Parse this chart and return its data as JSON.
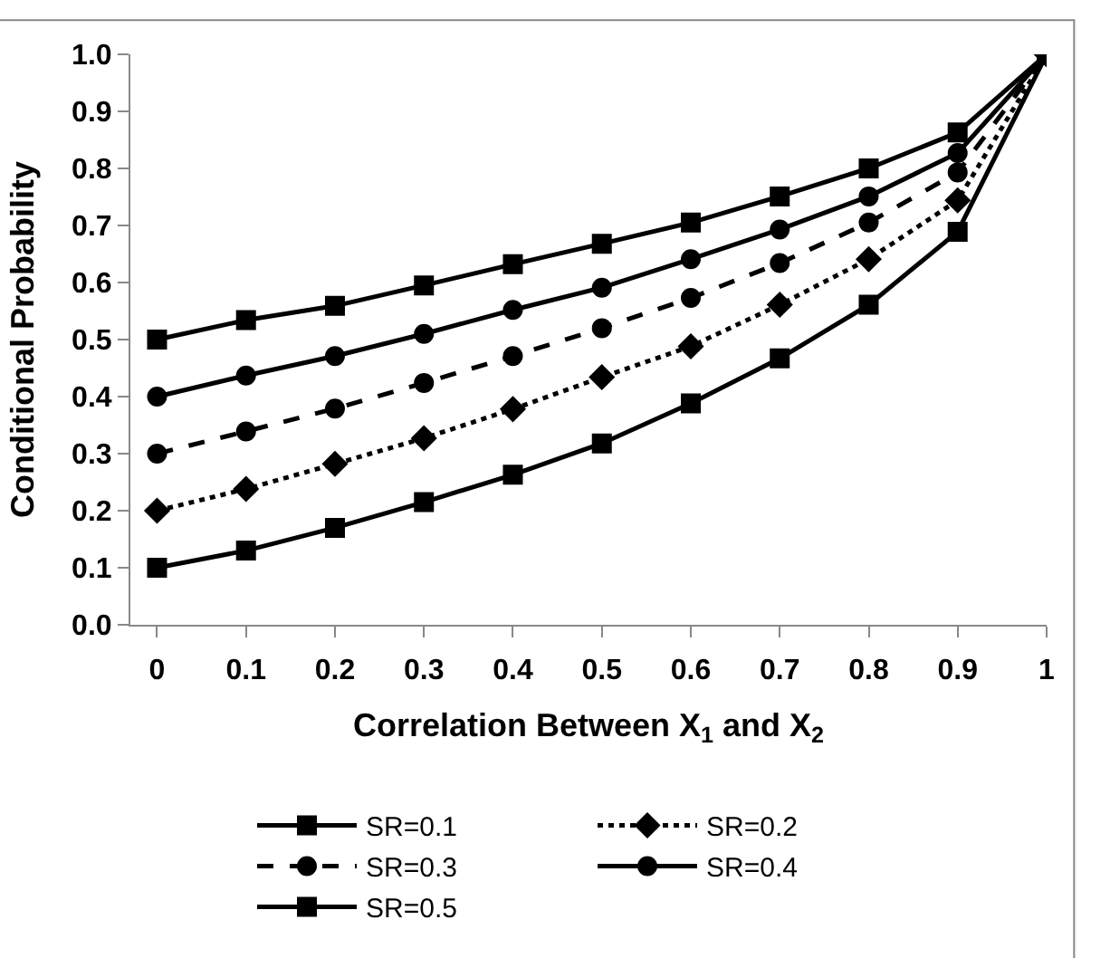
{
  "chart_data": {
    "type": "line",
    "xlabel": "Correlation Between X$_{1}$ and X$_{2}$",
    "ylabel": "Conditional Probability",
    "x": [
      0,
      0.1,
      0.2,
      0.3,
      0.4,
      0.5,
      0.6,
      0.7,
      0.8,
      0.9,
      1
    ],
    "xlim": [
      -0.03,
      1.0
    ],
    "xticks": [
      {
        "value": 0,
        "label": "0"
      },
      0.1,
      0.2,
      0.3,
      0.4,
      0.5,
      0.6,
      0.7,
      0.8,
      0.9,
      {
        "value": 1,
        "label": "1"
      }
    ],
    "ylim": [
      0,
      1
    ],
    "yticks": [
      {
        "value": 0,
        "label": "0.0"
      },
      0.1,
      0.2,
      0.3,
      0.4,
      0.5,
      0.6,
      0.7,
      0.8,
      0.9,
      {
        "value": 1,
        "label": "1.0"
      }
    ],
    "legend": "bottom",
    "series": [
      {
        "name": "SR=0.1",
        "color": "#000000",
        "marker": "square",
        "line_style": "solid",
        "values": [
          0.1,
          0.13,
          0.17,
          0.215,
          0.263,
          0.318,
          0.388,
          0.467,
          0.561,
          0.689,
          1.0
        ]
      },
      {
        "name": "SR=0.2",
        "color": "#000000",
        "marker": "diamond",
        "line_style": "dotted",
        "values": [
          0.2,
          0.238,
          0.282,
          0.327,
          0.378,
          0.434,
          0.488,
          0.561,
          0.641,
          0.744,
          1.0
        ]
      },
      {
        "name": "SR=0.3",
        "color": "#000000",
        "marker": "circle",
        "line_style": "dashed",
        "values": [
          0.3,
          0.339,
          0.379,
          0.424,
          0.471,
          0.52,
          0.573,
          0.634,
          0.705,
          0.793,
          1.0
        ]
      },
      {
        "name": "SR=0.4",
        "color": "#000000",
        "marker": "circle",
        "line_style": "solid",
        "values": [
          0.4,
          0.437,
          0.471,
          0.51,
          0.552,
          0.591,
          0.641,
          0.693,
          0.751,
          0.827,
          1.0
        ]
      },
      {
        "name": "SR=0.5",
        "color": "#000000",
        "marker": "square",
        "line_style": "solid",
        "values": [
          0.5,
          0.534,
          0.559,
          0.595,
          0.632,
          0.668,
          0.705,
          0.751,
          0.8,
          0.863,
          1.0
        ]
      }
    ]
  }
}
